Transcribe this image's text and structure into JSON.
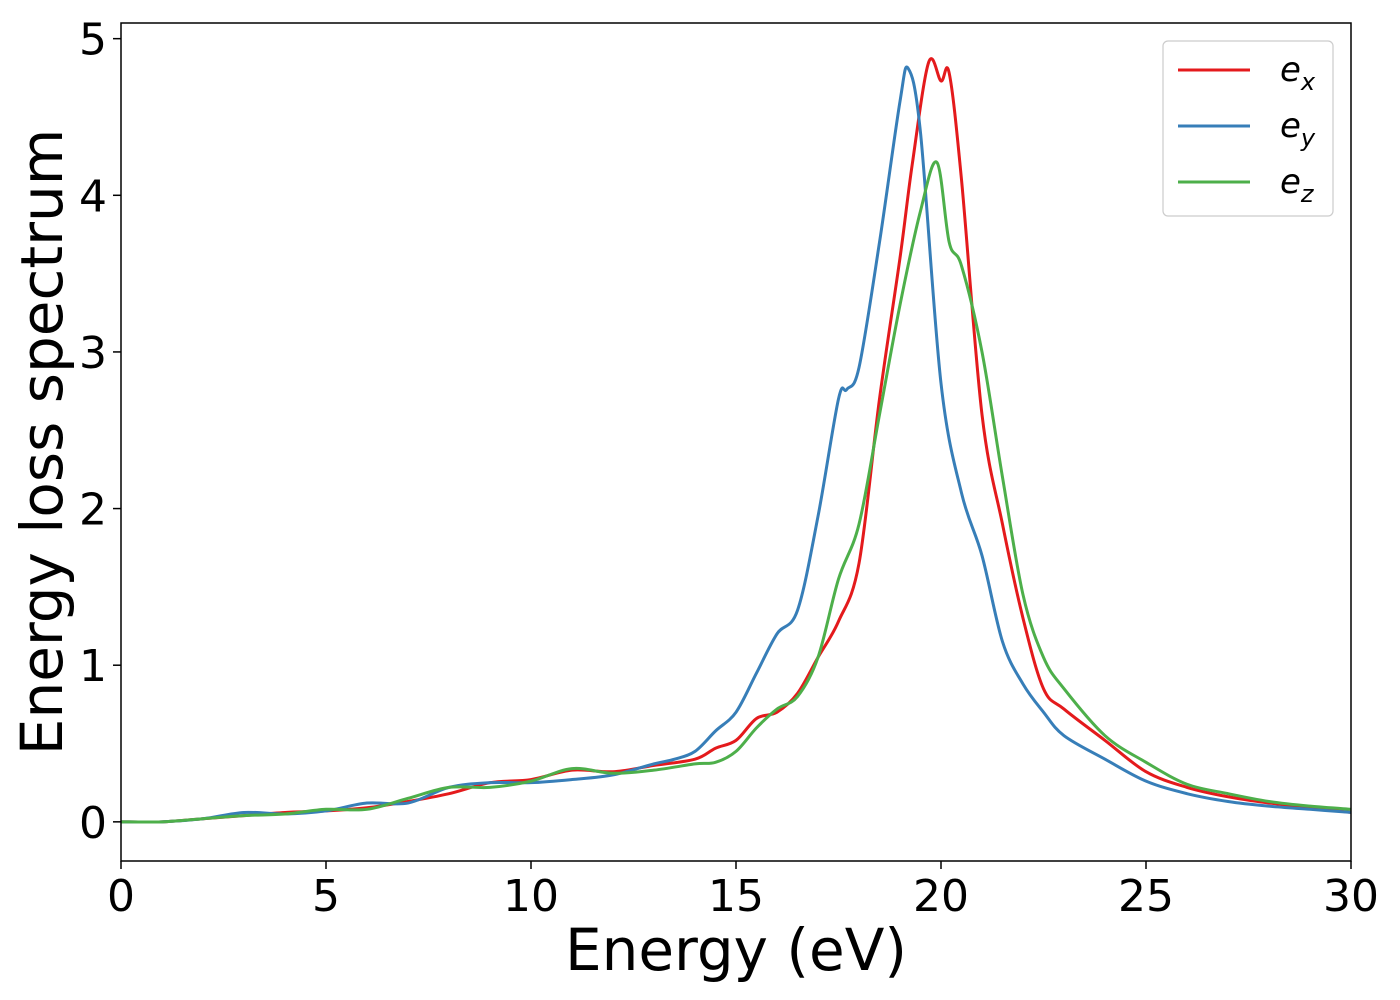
{
  "chart_data": {
    "type": "line",
    "xlabel": "Energy (eV)",
    "ylabel": "Energy loss spectrum",
    "xlim": [
      0,
      30
    ],
    "ylim": [
      -0.25,
      5.1
    ],
    "xticks": [
      0,
      5,
      10,
      15,
      20,
      25,
      30
    ],
    "xtick_labels": [
      "0",
      "5",
      "10",
      "15",
      "20",
      "25",
      "30"
    ],
    "yticks": [
      0,
      1,
      2,
      3,
      4,
      5
    ],
    "ytick_labels": [
      "0",
      "1",
      "2",
      "3",
      "4",
      "5"
    ],
    "grid": false,
    "legend_position": "top-right",
    "series": [
      {
        "name": "e",
        "subscript": "x",
        "color": "#e41a1c",
        "x": [
          0,
          1,
          2,
          3,
          4,
          5,
          6,
          7,
          8,
          9,
          10,
          11,
          12,
          13,
          14,
          14.5,
          15,
          15.5,
          16,
          16.5,
          17,
          17.5,
          18,
          18.5,
          19,
          19.3,
          19.7,
          20.0,
          20.2,
          20.5,
          21,
          21.5,
          22,
          22.5,
          23,
          24,
          25,
          26,
          27,
          28,
          29,
          30
        ],
        "y": [
          0,
          0,
          0.02,
          0.04,
          0.06,
          0.07,
          0.09,
          0.13,
          0.18,
          0.25,
          0.27,
          0.33,
          0.32,
          0.36,
          0.4,
          0.47,
          0.52,
          0.66,
          0.7,
          0.82,
          1.05,
          1.28,
          1.65,
          2.7,
          3.6,
          4.2,
          4.85,
          4.73,
          4.78,
          4.1,
          2.6,
          1.9,
          1.3,
          0.85,
          0.72,
          0.52,
          0.32,
          0.22,
          0.16,
          0.12,
          0.09,
          0.06
        ]
      },
      {
        "name": "e",
        "subscript": "y",
        "color": "#377eb8",
        "x": [
          0,
          1,
          2,
          3,
          4,
          5,
          6,
          7,
          8,
          9,
          10,
          11,
          12,
          13,
          13.5,
          14,
          14.5,
          15,
          15.5,
          16,
          16.5,
          17,
          17.5,
          17.7,
          18,
          18.5,
          19,
          19.2,
          19.5,
          20,
          20.5,
          21,
          21.5,
          22,
          22.5,
          23,
          24,
          25,
          26,
          27,
          28,
          29,
          30
        ],
        "y": [
          0,
          0,
          0.02,
          0.06,
          0.05,
          0.07,
          0.12,
          0.12,
          0.22,
          0.25,
          0.25,
          0.27,
          0.3,
          0.37,
          0.4,
          0.45,
          0.58,
          0.7,
          0.95,
          1.2,
          1.35,
          1.95,
          2.7,
          2.76,
          2.9,
          3.7,
          4.6,
          4.81,
          4.4,
          2.8,
          2.1,
          1.7,
          1.15,
          0.88,
          0.7,
          0.55,
          0.4,
          0.26,
          0.18,
          0.13,
          0.1,
          0.08,
          0.06
        ]
      },
      {
        "name": "e",
        "subscript": "z",
        "color": "#4daf4a",
        "x": [
          0,
          1,
          2,
          3,
          4,
          5,
          6,
          7,
          8,
          9,
          10,
          11,
          12,
          13,
          14,
          14.5,
          15,
          15.5,
          16,
          16.5,
          17,
          17.5,
          18,
          18.5,
          19,
          19.5,
          19.9,
          20.2,
          20.5,
          21,
          21.5,
          22,
          22.5,
          23,
          24,
          25,
          26,
          27,
          28,
          29,
          30
        ],
        "y": [
          0,
          0,
          0.02,
          0.04,
          0.05,
          0.08,
          0.08,
          0.15,
          0.22,
          0.22,
          0.26,
          0.34,
          0.31,
          0.33,
          0.37,
          0.38,
          0.45,
          0.6,
          0.72,
          0.8,
          1.05,
          1.55,
          1.9,
          2.6,
          3.3,
          3.9,
          4.21,
          3.7,
          3.55,
          3.0,
          2.2,
          1.45,
          1.05,
          0.85,
          0.55,
          0.38,
          0.24,
          0.18,
          0.13,
          0.1,
          0.08
        ]
      }
    ]
  }
}
